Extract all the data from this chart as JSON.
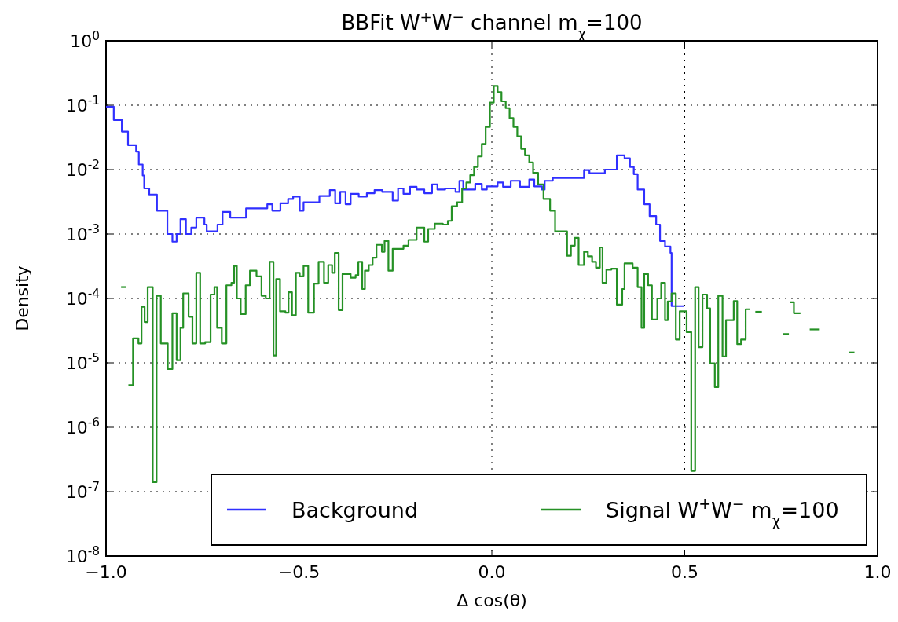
{
  "chart_data": {
    "type": "step",
    "title": "BBFit W$^{+}$W$^{−}$ channel m$_{χ}$=100",
    "xlabel": "Δ cos(θ)",
    "ylabel": "Density",
    "log": true,
    "grid": true,
    "legend": "bottom right",
    "xlim": [
      -1,
      1
    ],
    "ylim": [
      1e-08,
      1
    ],
    "xticks": [
      {
        "value": -1,
        "label": "−1.0"
      },
      {
        "value": -0.5,
        "label": "−0.5"
      },
      {
        "value": 0,
        "label": "0.0"
      },
      {
        "value": 0.5,
        "label": "0.5"
      },
      {
        "value": 1,
        "label": "1.0"
      }
    ],
    "yticks": [
      {
        "value": 1e-08,
        "label": "10$^{-8}$"
      },
      {
        "value": 1e-07,
        "label": "10$^{-7}$"
      },
      {
        "value": 1e-06,
        "label": "10$^{-6}$"
      },
      {
        "value": 1e-05,
        "label": "10$^{-5}$"
      },
      {
        "value": 0.0001,
        "label": "10$^{-4}$"
      },
      {
        "value": 0.001,
        "label": "10$^{-3}$"
      },
      {
        "value": 0.01,
        "label": "10$^{-2}$"
      },
      {
        "value": 0.1,
        "label": "10$^{-1}$"
      },
      {
        "value": 1,
        "label": "10$^{0}$"
      }
    ],
    "series": [
      {
        "name": "Background",
        "color": "#3030ff",
        "x": [
          -1.0,
          -0.98,
          -0.959,
          -0.943,
          -0.922,
          -0.915,
          -0.905,
          -0.901,
          -0.888,
          -0.868,
          -0.841,
          -0.828,
          -0.817,
          -0.807,
          -0.793,
          -0.779,
          -0.766,
          -0.745,
          -0.739,
          -0.711,
          -0.698,
          -0.678,
          -0.657,
          -0.637,
          -0.603,
          -0.582,
          -0.569,
          -0.548,
          -0.528,
          -0.515,
          -0.498,
          -0.488,
          -0.467,
          -0.447,
          -0.42,
          -0.406,
          -0.393,
          -0.379,
          -0.366,
          -0.345,
          -0.324,
          -0.304,
          -0.284,
          -0.257,
          -0.243,
          -0.229,
          -0.212,
          -0.195,
          -0.175,
          -0.155,
          -0.141,
          -0.121,
          -0.094,
          -0.084,
          -0.074,
          -0.043,
          -0.026,
          -0.013,
          0.015,
          0.029,
          0.049,
          0.073,
          0.097,
          0.11,
          0.13,
          0.137,
          0.158,
          0.198,
          0.239,
          0.253,
          0.293,
          0.324,
          0.344,
          0.358,
          0.368,
          0.378,
          0.395,
          0.409,
          0.426,
          0.436,
          0.449,
          0.463,
          0.466,
          0.497
        ],
        "values": [
          0.095,
          0.059,
          0.039,
          0.024,
          0.019,
          0.012,
          0.0081,
          0.0051,
          0.0041,
          0.0023,
          0.001,
          0.00076,
          0.001,
          0.0017,
          0.001,
          0.00126,
          0.0018,
          0.0014,
          0.0011,
          0.0014,
          0.0022,
          0.0018,
          0.0018,
          0.0025,
          0.0025,
          0.0029,
          0.0023,
          0.003,
          0.0035,
          0.0038,
          0.0023,
          0.0031,
          0.0031,
          0.0039,
          0.0048,
          0.003,
          0.0045,
          0.0029,
          0.0042,
          0.0038,
          0.0043,
          0.0048,
          0.0045,
          0.0033,
          0.0051,
          0.0042,
          0.0054,
          0.0049,
          0.0043,
          0.0059,
          0.0049,
          0.0051,
          0.0045,
          0.0067,
          0.0049,
          0.006,
          0.0049,
          0.0055,
          0.0063,
          0.0054,
          0.0067,
          0.0054,
          0.007,
          0.0055,
          0.0049,
          0.0067,
          0.0074,
          0.0074,
          0.0098,
          0.0088,
          0.01,
          0.0166,
          0.015,
          0.011,
          0.0085,
          0.0049,
          0.0029,
          0.0019,
          0.0014,
          0.00078,
          0.00064,
          0.00051,
          7.6e-05,
          7.6e-05
        ]
      },
      {
        "name": "Signal W$^{+}$W$^{−}$  m$_{χ}$=100",
        "color": "#259125",
        "x": [
          -0.942,
          -0.93,
          -0.916,
          -0.908,
          -0.9,
          -0.892,
          -0.879,
          -0.869,
          -0.858,
          -0.84,
          -0.828,
          -0.817,
          -0.807,
          -0.8,
          -0.786,
          -0.776,
          -0.766,
          -0.756,
          -0.743,
          -0.729,
          -0.719,
          -0.712,
          -0.7,
          -0.688,
          -0.675,
          -0.668,
          -0.661,
          -0.651,
          -0.638,
          -0.627,
          -0.61,
          -0.597,
          -0.586,
          -0.576,
          -0.566,
          -0.559,
          -0.549,
          -0.535,
          -0.527,
          -0.518,
          -0.508,
          -0.498,
          -0.488,
          -0.476,
          -0.461,
          -0.449,
          -0.435,
          -0.424,
          -0.414,
          -0.407,
          -0.397,
          -0.387,
          -0.366,
          -0.353,
          -0.346,
          -0.336,
          -0.329,
          -0.319,
          -0.309,
          -0.299,
          -0.285,
          -0.278,
          -0.268,
          -0.257,
          -0.229,
          -0.216,
          -0.195,
          -0.175,
          -0.165,
          -0.148,
          -0.127,
          -0.114,
          -0.104,
          -0.09,
          -0.077,
          -0.066,
          -0.056,
          -0.046,
          -0.036,
          -0.026,
          -0.016,
          -0.005,
          0.005,
          0.015,
          0.025,
          0.036,
          0.046,
          0.056,
          0.066,
          0.076,
          0.086,
          0.097,
          0.107,
          0.12,
          0.134,
          0.151,
          0.164,
          0.195,
          0.205,
          0.215,
          0.225,
          0.239,
          0.249,
          0.26,
          0.27,
          0.28,
          0.287,
          0.297,
          0.31,
          0.324,
          0.338,
          0.344,
          0.365,
          0.378,
          0.388,
          0.395,
          0.405,
          0.415,
          0.429,
          0.439,
          0.449,
          0.456,
          0.466,
          0.477,
          0.487,
          0.505,
          0.517,
          0.527,
          0.536,
          0.546,
          0.558,
          0.566,
          0.578,
          0.587,
          0.598,
          0.607,
          0.627,
          0.636,
          0.646,
          0.658,
          0.67
        ],
        "values": [
          4.5e-06,
          2.4e-05,
          2e-05,
          7.4e-05,
          4.3e-05,
          0.00015,
          1.4e-07,
          0.00011,
          2e-05,
          8e-06,
          5.9e-05,
          1.1e-05,
          3.5e-05,
          0.00012,
          5.2e-05,
          2e-05,
          0.00025,
          2e-05,
          2.1e-05,
          0.000115,
          0.00015,
          3.5e-05,
          2e-05,
          0.00016,
          0.000175,
          0.00032,
          0.0001,
          5.7e-05,
          0.00016,
          0.00027,
          0.00022,
          0.00011,
          0.0001,
          0.00037,
          1.3e-05,
          0.0002,
          6.3e-05,
          6e-05,
          0.000125,
          5.5e-05,
          0.00025,
          0.00022,
          0.00032,
          6e-05,
          0.00017,
          0.00037,
          0.000175,
          0.00033,
          0.00025,
          0.00051,
          6.6e-05,
          0.00024,
          0.00021,
          0.00023,
          0.00037,
          0.00014,
          0.00027,
          0.00033,
          0.00043,
          0.00068,
          0.00053,
          0.00078,
          0.00027,
          0.00059,
          0.00066,
          0.00081,
          0.00126,
          0.00076,
          0.0012,
          0.00145,
          0.0014,
          0.0016,
          0.0027,
          0.0031,
          0.0051,
          0.0063,
          0.0082,
          0.011,
          0.016,
          0.025,
          0.046,
          0.11,
          0.2,
          0.16,
          0.115,
          0.09,
          0.063,
          0.046,
          0.033,
          0.021,
          0.0166,
          0.0129,
          0.0089,
          0.0059,
          0.0035,
          0.0023,
          0.0011,
          0.00046,
          0.00066,
          0.00087,
          0.00033,
          0.00053,
          0.00045,
          0.00037,
          0.0003,
          0.00062,
          0.000175,
          0.00028,
          0.00029,
          8e-05,
          0.00014,
          0.00035,
          0.0003,
          0.00015,
          3.5e-05,
          0.00024,
          0.00016,
          4.7e-05,
          0.0001,
          0.000175,
          4.6e-05,
          9e-05,
          0.00012,
          2.3e-05,
          6.3e-05,
          3e-05,
          2.1e-07,
          0.00015,
          1.75e-05,
          0.000115,
          7e-05,
          9.8e-06,
          4.2e-06,
          0.00011,
          1.26e-05,
          4.6e-05,
          9.1e-05,
          1.95e-05,
          2.3e-05,
          6.8e-05,
          6.8e-05
        ]
      },
      {
        "color": "#259125",
        "x": [
          -0.961,
          -0.949
        ],
        "values": [
          0.00015,
          0.00015
        ]
      },
      {
        "color": "#259125",
        "x": [
          0.683,
          0.7
        ],
        "values": [
          6.2e-05,
          6.2e-05
        ]
      },
      {
        "color": "#259125",
        "x": [
          0.755,
          0.77
        ],
        "values": [
          2.8e-05,
          2.8e-05
        ]
      },
      {
        "color": "#259125",
        "x": [
          0.773,
          0.783,
          0.8
        ],
        "values": [
          8.7e-05,
          5.9e-05,
          5.9e-05
        ]
      },
      {
        "color": "#259125",
        "x": [
          0.824,
          0.85
        ],
        "values": [
          3.3e-05,
          3.3e-05
        ]
      },
      {
        "color": "#259125",
        "x": [
          0.925,
          0.94
        ],
        "values": [
          1.45e-05,
          1.45e-05
        ]
      }
    ]
  }
}
